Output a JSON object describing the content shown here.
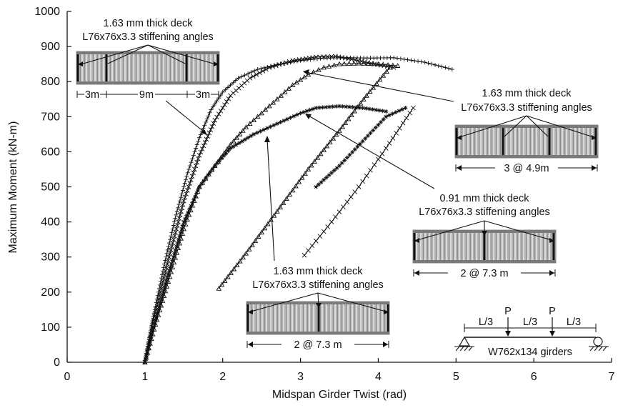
{
  "chart_data": {
    "type": "scatter",
    "title": "",
    "xlabel": "Midspan Girder Twist (rad)",
    "ylabel": "Maximum Moment (kN-m)",
    "xlim": [
      0,
      7
    ],
    "ylim": [
      0,
      1000
    ],
    "xticks": [
      "0",
      "1",
      "2",
      "3",
      "4",
      "5",
      "6",
      "7"
    ],
    "yticks": [
      "0",
      "100",
      "200",
      "300",
      "400",
      "500",
      "600",
      "700",
      "800",
      "900",
      "1000"
    ],
    "grid": false,
    "series": [
      {
        "marker": "+",
        "loading": [
          [
            1.0,
            0
          ],
          [
            1.1,
            120
          ],
          [
            1.25,
            280
          ],
          [
            1.4,
            420
          ],
          [
            1.55,
            540
          ],
          [
            1.7,
            640
          ],
          [
            1.85,
            720
          ],
          [
            2.0,
            770
          ],
          [
            2.2,
            810
          ],
          [
            2.45,
            835
          ],
          [
            2.7,
            848
          ],
          [
            3.0,
            860
          ],
          [
            3.3,
            867
          ],
          [
            3.6,
            868
          ],
          [
            3.9,
            867
          ],
          [
            4.2,
            868
          ],
          [
            4.6,
            855
          ],
          [
            4.95,
            835
          ]
        ]
      },
      {
        "marker": "x",
        "loading": [
          [
            1.0,
            0
          ],
          [
            1.1,
            110
          ],
          [
            1.3,
            290
          ],
          [
            1.5,
            460
          ],
          [
            1.7,
            590
          ],
          [
            1.9,
            690
          ],
          [
            2.1,
            760
          ],
          [
            2.35,
            810
          ],
          [
            2.6,
            840
          ],
          [
            2.9,
            860
          ],
          [
            3.2,
            870
          ],
          [
            3.45,
            872
          ],
          [
            3.7,
            862
          ],
          [
            3.95,
            850
          ],
          [
            4.2,
            840
          ]
        ]
      },
      {
        "marker": "triangle",
        "loading": [
          [
            1.0,
            0
          ],
          [
            1.1,
            80
          ],
          [
            1.3,
            230
          ],
          [
            1.5,
            380
          ],
          [
            1.7,
            500
          ],
          [
            1.9,
            560
          ],
          [
            2.1,
            620
          ],
          [
            2.3,
            670
          ],
          [
            2.5,
            710
          ],
          [
            2.7,
            750
          ],
          [
            2.9,
            790
          ],
          [
            3.1,
            820
          ],
          [
            3.3,
            840
          ],
          [
            3.5,
            850
          ],
          [
            3.75,
            852
          ],
          [
            4.0,
            850
          ],
          [
            4.25,
            845
          ]
        ],
        "reloading": [
          [
            1.95,
            210
          ],
          [
            2.3,
            310
          ],
          [
            2.7,
            430
          ],
          [
            3.1,
            550
          ],
          [
            3.5,
            660
          ],
          [
            3.85,
            760
          ],
          [
            4.15,
            840
          ]
        ]
      },
      {
        "marker": "asterisk",
        "loading": [
          [
            1.0,
            0
          ],
          [
            1.1,
            90
          ],
          [
            1.3,
            250
          ],
          [
            1.5,
            400
          ],
          [
            1.7,
            500
          ],
          [
            1.9,
            560
          ],
          [
            2.1,
            610
          ],
          [
            2.4,
            650
          ],
          [
            2.7,
            680
          ],
          [
            3.0,
            710
          ],
          [
            3.2,
            725
          ],
          [
            3.5,
            730
          ],
          [
            3.8,
            725
          ],
          [
            4.1,
            715
          ]
        ],
        "reloading": [
          [
            3.2,
            500
          ],
          [
            3.5,
            560
          ],
          [
            3.8,
            630
          ],
          [
            4.1,
            700
          ],
          [
            4.35,
            725
          ]
        ]
      },
      {
        "marker": "x-thin",
        "reloading": [
          [
            3.05,
            305
          ],
          [
            3.4,
            400
          ],
          [
            3.75,
            500
          ],
          [
            4.1,
            610
          ],
          [
            4.45,
            725
          ]
        ]
      }
    ],
    "annotations": [
      {
        "line1": "1.63 mm thick deck",
        "line2": "L76x76x3.3 stiffening angles",
        "dims": [
          "3m",
          "9m",
          "3m"
        ]
      },
      {
        "line1": "1.63 mm thick deck",
        "line2": "L76x76x3.3 stiffening angles",
        "dims": [
          "3 @ 4.9m"
        ]
      },
      {
        "line1": "0.91 mm thick deck",
        "line2": "L76x76x3.3 stiffening angles",
        "dims": [
          "2 @ 7.3 m"
        ]
      },
      {
        "line1": "1.63 mm thick deck",
        "line2": "L76x76x3.3 stiffening angles",
        "dims": [
          "2 @ 7.3 m"
        ]
      }
    ],
    "loading_diagram": {
      "spans": [
        "L/3",
        "L/3",
        "L/3"
      ],
      "loads": [
        "P",
        "P"
      ],
      "caption": "W762x134 girders"
    }
  }
}
